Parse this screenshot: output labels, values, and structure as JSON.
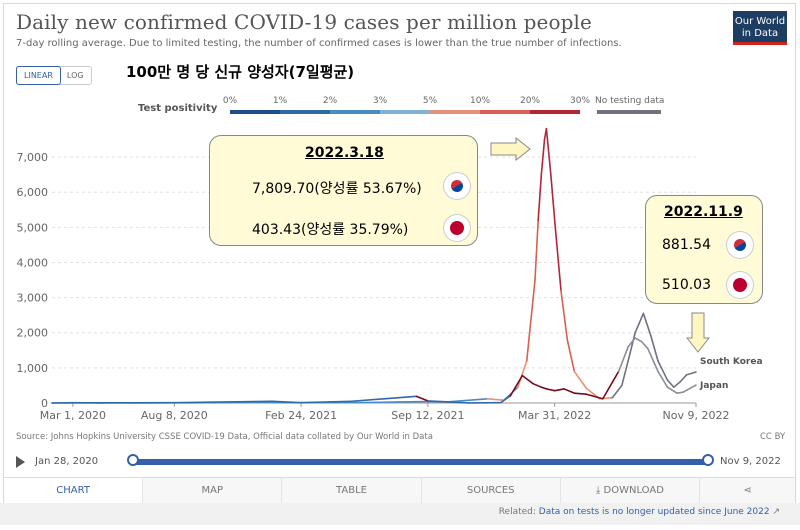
{
  "title": "Daily new confirmed COVID-19 cases per million people",
  "subtitle": "7-day rolling average. Due to limited testing, the number of confirmed cases is lower than the true number of infections.",
  "logo": {
    "line1": "Our World",
    "line2": "in Data"
  },
  "scale_toggle": {
    "linear": "LINEAR",
    "log": "LOG",
    "selected": "LINEAR"
  },
  "korean_title": "100만 명 당 신규 양성자(7일평균)",
  "test_positivity": {
    "label": "Test positivity",
    "ticks": [
      "0%",
      "1%",
      "2%",
      "3%",
      "5%",
      "10%",
      "20%",
      "30%"
    ],
    "colors": [
      "#1d4e89",
      "#2f6aa8",
      "#4a8bc4",
      "#7fb0d6",
      "#e8907a",
      "#d95f4e",
      "#b3263a",
      "#7a0a1a"
    ],
    "no_data_label": "No testing data",
    "no_data_color": "#6f7280"
  },
  "callout_left": {
    "date": "2022.3.18",
    "korea_value": "7,809.70(양성률 53.67%)",
    "japan_value": "403.43(양성률 35.79%)"
  },
  "callout_right": {
    "date": "2022.11.9",
    "korea_value": "881.54",
    "japan_value": "510.03"
  },
  "icons": {
    "korea_flag": "korea-flag-icon",
    "japan_flag": "japan-flag-icon",
    "arrow": "arrow-icon"
  },
  "chart_data": {
    "type": "line",
    "title": "Daily new confirmed COVID-19 cases per million people",
    "ylim": [
      0,
      7800
    ],
    "y_ticks": [
      0,
      1000,
      2000,
      3000,
      4000,
      5000,
      6000,
      7000
    ],
    "y_tick_labels": [
      "0",
      "1,000",
      "2,000",
      "3,000",
      "4,000",
      "5,000",
      "6,000",
      "7,000"
    ],
    "x_range": [
      "2020-01-28",
      "2022-11-09"
    ],
    "x_ticks": [
      "2020-03-01",
      "2020-08-08",
      "2021-02-24",
      "2021-09-12",
      "2022-03-31",
      "2022-11-09"
    ],
    "x_tick_labels": [
      "Mar 1, 2020",
      "Aug 8, 2020",
      "Feb 24, 2021",
      "Sep 12, 2021",
      "Mar 31, 2022",
      "Nov 9, 2022"
    ],
    "grid": true,
    "series": [
      {
        "name": "South Korea",
        "color": "#a81e2f",
        "x": [
          "2020-01-28",
          "2020-03-01",
          "2020-04-15",
          "2020-08-08",
          "2020-09-01",
          "2020-12-01",
          "2020-12-25",
          "2021-01-20",
          "2021-02-24",
          "2021-06-01",
          "2021-07-28",
          "2021-09-12",
          "2021-10-15",
          "2021-12-15",
          "2022-01-10",
          "2022-02-01",
          "2022-02-15",
          "2022-02-28",
          "2022-03-05",
          "2022-03-10",
          "2022-03-15",
          "2022-03-18",
          "2022-03-25",
          "2022-04-01",
          "2022-04-10",
          "2022-04-20",
          "2022-05-01",
          "2022-05-20",
          "2022-06-10",
          "2022-06-30",
          "2022-07-15",
          "2022-07-25",
          "2022-08-05",
          "2022-08-18",
          "2022-08-30",
          "2022-09-10",
          "2022-09-25",
          "2022-10-05",
          "2022-10-15",
          "2022-10-25",
          "2022-11-09"
        ],
        "y": [
          0,
          10,
          2,
          5,
          5,
          15,
          20,
          8,
          8,
          12,
          30,
          40,
          35,
          120,
          80,
          450,
          1200,
          3500,
          5200,
          6500,
          7500,
          7810,
          6500,
          5000,
          3200,
          1800,
          900,
          420,
          120,
          150,
          500,
          1200,
          2000,
          2550,
          1900,
          1200,
          650,
          450,
          600,
          800,
          882
        ]
      },
      {
        "name": "Japan",
        "color": "#7a0a1a",
        "x": [
          "2020-01-28",
          "2020-04-15",
          "2020-08-08",
          "2021-01-10",
          "2021-02-24",
          "2021-05-15",
          "2021-08-25",
          "2021-09-12",
          "2021-11-15",
          "2022-01-05",
          "2022-01-20",
          "2022-02-08",
          "2022-02-25",
          "2022-03-10",
          "2022-03-18",
          "2022-03-31",
          "2022-04-15",
          "2022-05-01",
          "2022-05-20",
          "2022-06-15",
          "2022-07-10",
          "2022-07-25",
          "2022-08-05",
          "2022-08-15",
          "2022-08-25",
          "2022-09-10",
          "2022-09-25",
          "2022-10-10",
          "2022-10-20",
          "2022-11-09"
        ],
        "y": [
          0,
          5,
          10,
          50,
          10,
          50,
          190,
          60,
          2,
          10,
          200,
          780,
          550,
          450,
          403,
          350,
          400,
          280,
          250,
          120,
          900,
          1600,
          1850,
          1750,
          1550,
          900,
          450,
          280,
          310,
          510
        ]
      }
    ]
  },
  "source": "Source: Johns Hopkins University CSSE COVID-19 Data, Official data collated by Our World in Data",
  "license": "CC BY",
  "timeline": {
    "start": "Jan 28, 2020",
    "end": "Nov 9, 2022"
  },
  "tabs": {
    "chart": "CHART",
    "map": "MAP",
    "table": "TABLE",
    "sources": "SOURCES",
    "download": "DOWNLOAD"
  },
  "related": {
    "prefix": "Related:",
    "link": "Data on tests is no longer updated since June 2022"
  }
}
